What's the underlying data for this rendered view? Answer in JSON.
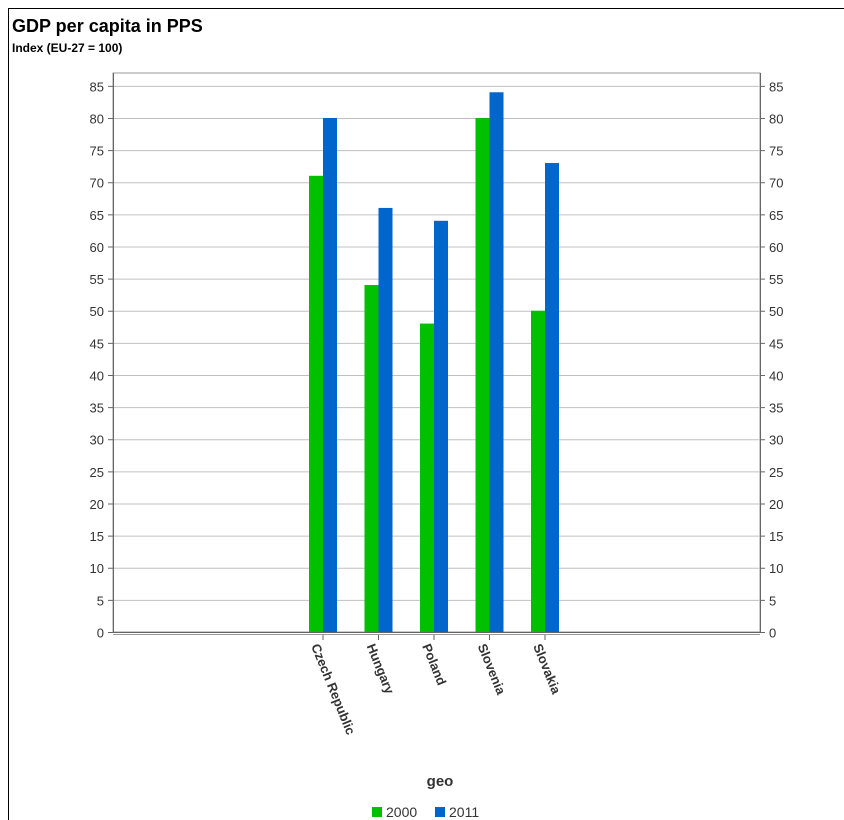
{
  "title": "GDP per capita in PPS",
  "subtitle": "Index (EU-27 = 100)",
  "colors": {
    "s2000": "#00c000",
    "s2011": "#0066cc"
  },
  "chart_data": {
    "type": "bar",
    "title": "GDP per capita in PPS",
    "subtitle": "Index (EU-27 = 100)",
    "xlabel": "geo",
    "ylabel": "",
    "ylim": [
      0,
      87
    ],
    "yticks": [
      0,
      5,
      10,
      15,
      20,
      25,
      30,
      35,
      40,
      45,
      50,
      55,
      60,
      65,
      70,
      75,
      80,
      85
    ],
    "grid": true,
    "legend_position": "bottom",
    "categories": [
      "Czech Republic",
      "Hungary",
      "Poland",
      "Slovenia",
      "Slovakia"
    ],
    "series": [
      {
        "name": "2000",
        "color": "#00c000",
        "values": [
          71,
          54,
          48,
          80,
          50
        ]
      },
      {
        "name": "2011",
        "color": "#0066cc",
        "values": [
          80,
          66,
          64,
          84,
          73
        ]
      }
    ]
  }
}
